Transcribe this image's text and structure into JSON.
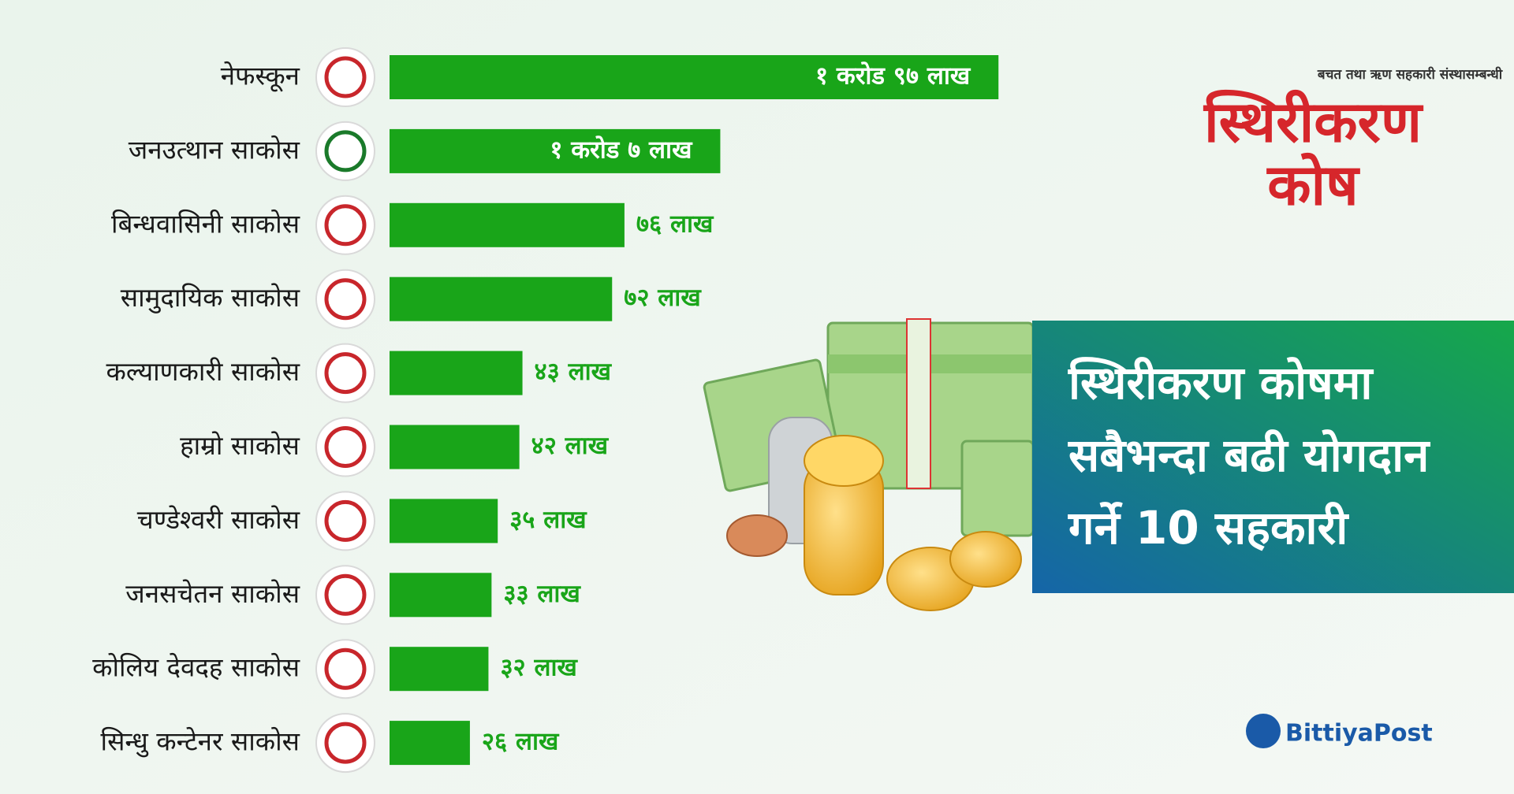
{
  "chart_data": {
    "type": "bar",
    "orientation": "horizontal",
    "title": [
      "स्थिरीकरण कोषमा",
      "सबैभन्दा बढी योगदान",
      "गर्ने 10 सहकारी"
    ],
    "categories": [
      "नेफस्कून",
      "जनउत्थान साकोस",
      "बिन्धवासिनी साकोस",
      "सामुदायिक साकोस",
      "कल्याणकारी साकोस",
      "हाम्रो साकोस",
      "चण्डेश्वरी साकोस",
      "जनसचेतन साकोस",
      "कोलिय देवदह साकोस",
      "सिन्धु कन्टेनर साकोस"
    ],
    "values": [
      197,
      107,
      76,
      72,
      43,
      42,
      35,
      33,
      32,
      26
    ],
    "value_labels": [
      "१ करोड ९७ लाख",
      "१ करोड ७ लाख",
      "७६ लाख",
      "७२ लाख",
      "४३ लाख",
      "४२ लाख",
      "३५ लाख",
      "३३ लाख",
      "३२ लाख",
      "२६ लाख"
    ],
    "color": "#19a519"
  },
  "branding": {
    "subtitle": "बचत तथा ऋण सहकारी संस्थासम्बन्धी",
    "logo_line1": "स्थिरीकरण",
    "logo_line2": "कोष",
    "publisher": "BittiyaPost"
  }
}
